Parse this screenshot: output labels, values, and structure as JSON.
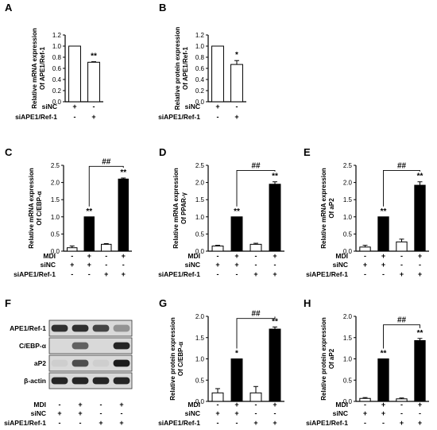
{
  "chart_data": [
    {
      "panel": "A",
      "type": "bar",
      "ylabel": [
        "Relative mRNA expression",
        "Of APE1/Ref-1"
      ],
      "ylim": [
        0,
        1.2
      ],
      "yticks": [
        "0.0",
        "0.2",
        "0.4",
        "0.6",
        "0.8",
        "1.0",
        "1.2"
      ],
      "conditions": [
        "siNC",
        "siAPE1/Ref-1"
      ],
      "signs": [
        [
          "+",
          "-"
        ],
        [
          "-",
          "+"
        ]
      ],
      "values": [
        1.0,
        0.71
      ],
      "errors": [
        0,
        0.01
      ],
      "fills": [
        "white",
        "white"
      ],
      "sig": [
        "",
        "**"
      ],
      "bracket": null
    },
    {
      "panel": "B",
      "type": "bar",
      "ylabel": [
        "Relative protein expression",
        "Of APE1/Ref-1"
      ],
      "ylim": [
        0,
        1.2
      ],
      "yticks": [
        "0.0",
        "0.2",
        "0.4",
        "0.6",
        "0.8",
        "1.0",
        "1.2"
      ],
      "conditions": [
        "siNC",
        "siAPE1/Ref-1"
      ],
      "signs": [
        [
          "+",
          "-"
        ],
        [
          "-",
          "+"
        ]
      ],
      "values": [
        1.0,
        0.67
      ],
      "errors": [
        0,
        0.07
      ],
      "fills": [
        "white",
        "white"
      ],
      "sig": [
        "",
        "*"
      ],
      "bracket": null
    },
    {
      "panel": "C",
      "type": "bar",
      "ylabel": [
        "Relative mRNA expression",
        "Of C/EBP-α"
      ],
      "ylim": [
        0,
        2.5
      ],
      "yticks": [
        "0.0",
        "0.5",
        "1.0",
        "1.5",
        "2.0",
        "2.5"
      ],
      "conditions": [
        "MDI",
        "siNC",
        "siAPE1/Ref-1"
      ],
      "signs": [
        [
          "-",
          "+",
          "-",
          "+"
        ],
        [
          "+",
          "+",
          "-",
          "-"
        ],
        [
          "-",
          "-",
          "+",
          "+"
        ]
      ],
      "values": [
        0.1,
        1.0,
        0.2,
        2.1
      ],
      "errors": [
        0.05,
        0,
        0.02,
        0.03
      ],
      "fills": [
        "white",
        "black",
        "white",
        "black"
      ],
      "sig": [
        "",
        "**",
        "",
        "**"
      ],
      "bracket": {
        "from": 1,
        "to": 3,
        "y": 2.47,
        "label": "##"
      }
    },
    {
      "panel": "D",
      "type": "bar",
      "ylabel": [
        "Relative mRNA expression",
        "Of PPAR-γ"
      ],
      "ylim": [
        0,
        2.5
      ],
      "yticks": [
        "0.0",
        "0.5",
        "1.0",
        "1.5",
        "2.0",
        "2.5"
      ],
      "conditions": [
        "MDI",
        "siNC",
        "siAPE1/Ref-1"
      ],
      "signs": [
        [
          "-",
          "+",
          "-",
          "+"
        ],
        [
          "+",
          "+",
          "-",
          "-"
        ],
        [
          "-",
          "-",
          "+",
          "+"
        ]
      ],
      "values": [
        0.15,
        1.0,
        0.2,
        1.95
      ],
      "errors": [
        0.02,
        0,
        0.03,
        0.07
      ],
      "fills": [
        "white",
        "black",
        "white",
        "black"
      ],
      "sig": [
        "",
        "**",
        "",
        "**"
      ],
      "bracket": {
        "from": 1,
        "to": 3,
        "y": 2.35,
        "label": "##"
      }
    },
    {
      "panel": "E",
      "type": "bar",
      "ylabel": [
        "Relative mRNA expression",
        "Of aP2"
      ],
      "ylim": [
        0,
        2.5
      ],
      "yticks": [
        "0.0",
        "0.5",
        "1.0",
        "1.5",
        "2.0",
        "2.5"
      ],
      "conditions": [
        "MDI",
        "siNC",
        "siAPE1/Ref-1"
      ],
      "signs": [
        [
          "-",
          "+",
          "-",
          "+"
        ],
        [
          "+",
          "+",
          "-",
          "-"
        ],
        [
          "-",
          "-",
          "+",
          "+"
        ]
      ],
      "values": [
        0.12,
        1.0,
        0.27,
        1.92
      ],
      "errors": [
        0.05,
        0,
        0.08,
        0.1
      ],
      "fills": [
        "white",
        "black",
        "white",
        "black"
      ],
      "sig": [
        "",
        "**",
        "",
        "**"
      ],
      "bracket": {
        "from": 1,
        "to": 3,
        "y": 2.35,
        "label": "##"
      }
    },
    {
      "panel": "G",
      "type": "bar",
      "ylabel": [
        "Relative protein expression",
        "Of C/EBP-α"
      ],
      "ylim": [
        0,
        2.0
      ],
      "yticks": [
        "0.0",
        "0.5",
        "1.0",
        "1.5",
        "2.0"
      ],
      "conditions": [
        "MDI",
        "siNC",
        "siAPE1/Ref-1"
      ],
      "signs": [
        [
          "-",
          "+",
          "-",
          "+"
        ],
        [
          "+",
          "+",
          "-",
          "-"
        ],
        [
          "-",
          "-",
          "+",
          "+"
        ]
      ],
      "values": [
        0.2,
        1.0,
        0.2,
        1.7
      ],
      "errors": [
        0.1,
        0,
        0.15,
        0.05
      ],
      "fills": [
        "white",
        "black",
        "white",
        "black"
      ],
      "sig": [
        "",
        "*",
        "",
        "**"
      ],
      "bracket": {
        "from": 1,
        "to": 3,
        "y": 1.95,
        "label": "##"
      }
    },
    {
      "panel": "H",
      "type": "bar",
      "ylabel": [
        "Relative protein expression",
        "Of aP2"
      ],
      "ylim": [
        0,
        2.0
      ],
      "yticks": [
        "0.0",
        "0.5",
        "1.0",
        "1.5",
        "2.0"
      ],
      "conditions": [
        "MDI",
        "siNC",
        "siAPE1/Ref-1"
      ],
      "signs": [
        [
          "-",
          "+",
          "-",
          "+"
        ],
        [
          "+",
          "+",
          "-",
          "-"
        ],
        [
          "-",
          "-",
          "+",
          "+"
        ]
      ],
      "values": [
        0.07,
        1.0,
        0.06,
        1.43
      ],
      "errors": [
        0.02,
        0,
        0.02,
        0.05
      ],
      "fills": [
        "white",
        "black",
        "white",
        "black"
      ],
      "sig": [
        "",
        "**",
        "",
        "**"
      ],
      "bracket": {
        "from": 1,
        "to": 3,
        "y": 1.8,
        "label": "##"
      }
    }
  ],
  "blot": {
    "panel": "F",
    "proteins": [
      "APE1/Ref-1",
      "C/EBP-α",
      "aP2",
      "β-actin"
    ],
    "band_intensity": [
      [
        0.85,
        0.85,
        0.75,
        0.35
      ],
      [
        0.0,
        0.6,
        0.0,
        0.9
      ],
      [
        0.05,
        0.7,
        0.05,
        0.95
      ],
      [
        0.9,
        0.9,
        0.9,
        0.9
      ]
    ],
    "conditions": [
      "MDI",
      "siNC",
      "siAPE1/Ref-1"
    ],
    "signs": [
      [
        "-",
        "+",
        "-",
        "+"
      ],
      [
        "+",
        "+",
        "-",
        "-"
      ],
      [
        "-",
        "-",
        "+",
        "+"
      ]
    ]
  }
}
